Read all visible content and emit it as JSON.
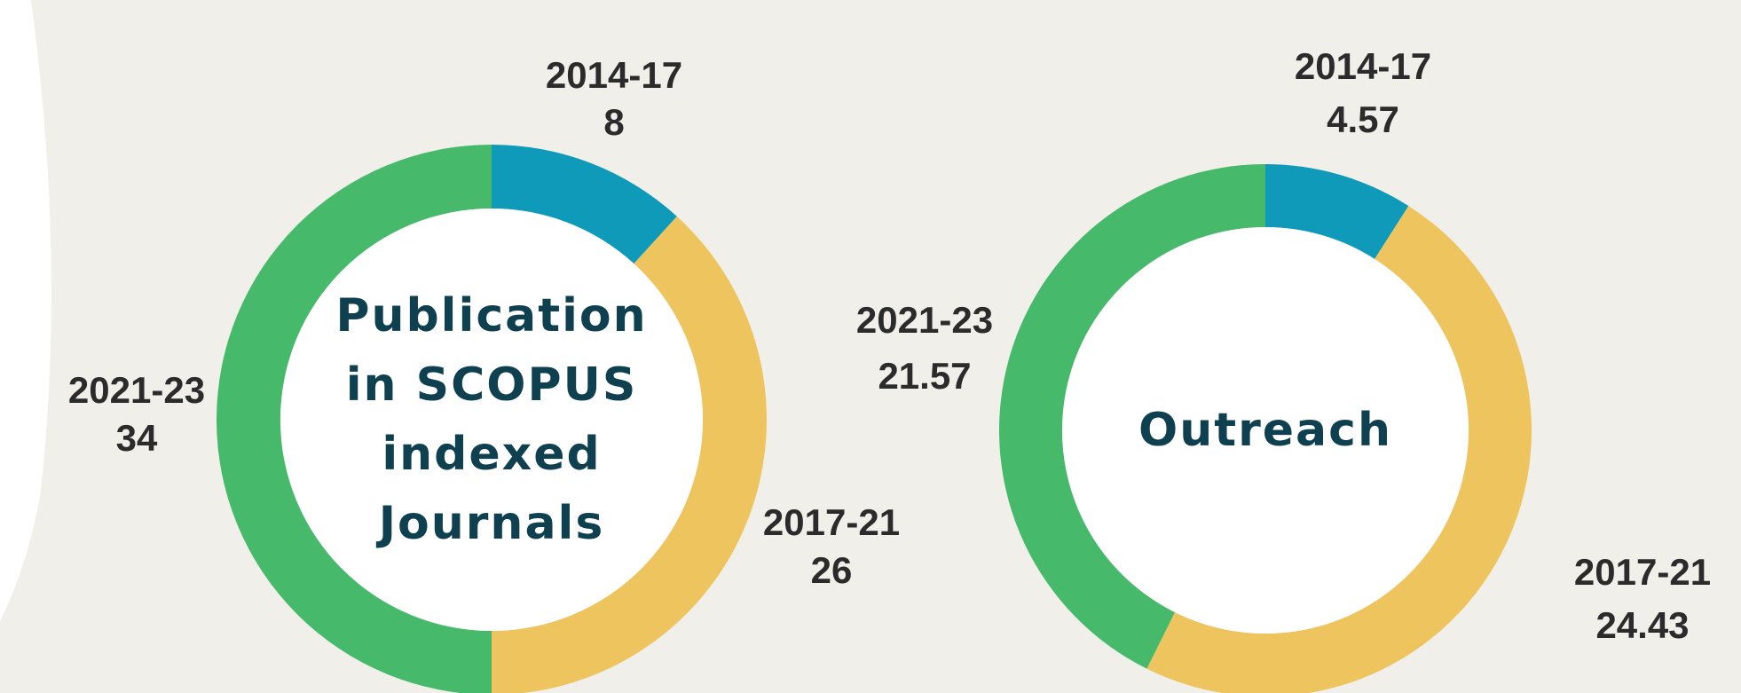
{
  "chart_data": [
    {
      "type": "pie",
      "title": "Publication in SCOPUS indexed Journals",
      "categories": [
        "2014-17",
        "2017-21",
        "2021-23"
      ],
      "values": [
        8,
        26,
        34
      ],
      "colors": [
        "#0e9ab8",
        "#edc45e",
        "#46b96b"
      ]
    },
    {
      "type": "pie",
      "title": "Outreach",
      "categories": [
        "2014-17",
        "2017-21",
        "2021-23"
      ],
      "values": [
        4.57,
        24.43,
        21.57
      ],
      "colors": [
        "#0e9ab8",
        "#edc45e",
        "#46b96b"
      ]
    }
  ]
}
